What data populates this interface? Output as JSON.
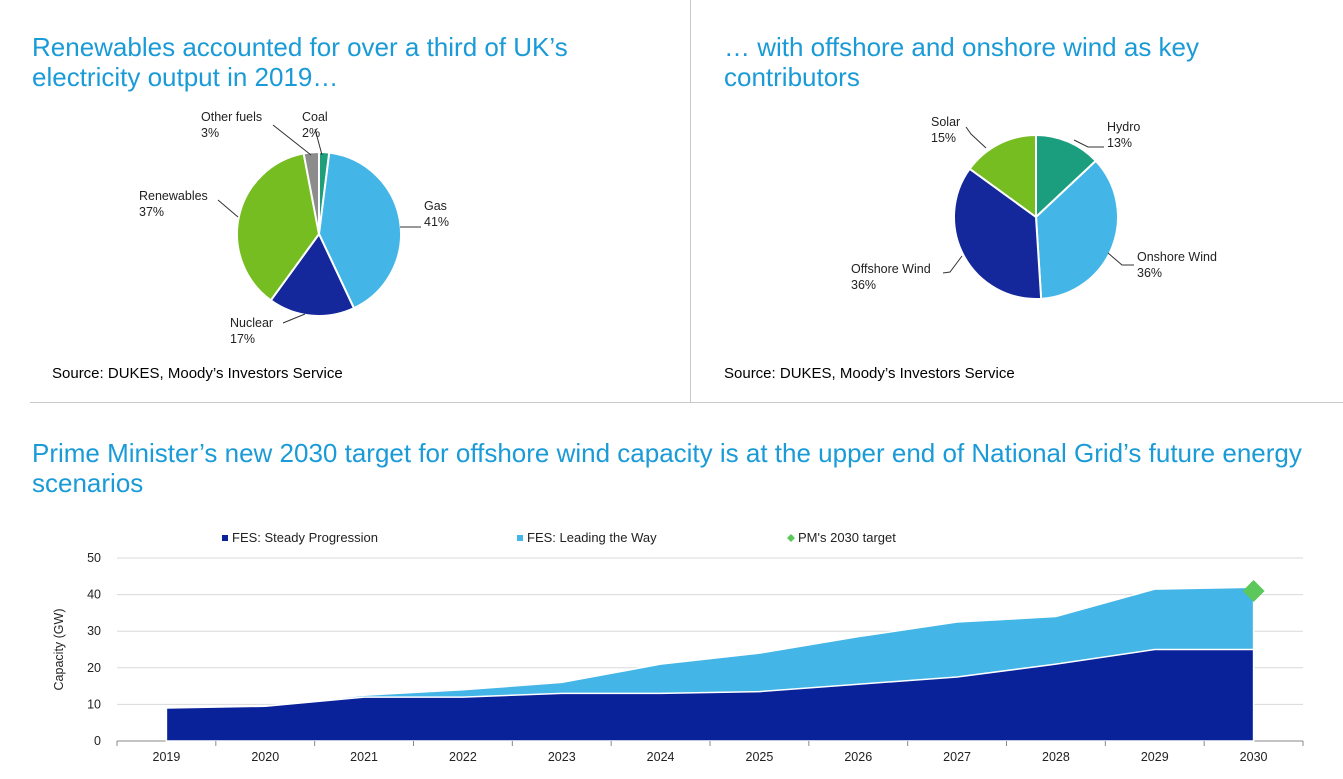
{
  "panels": {
    "top_left": {
      "title": "Renewables accounted for over a third of UK’s electricity output in 2019…",
      "source": "Source: DUKES, Moody’s Investors Service"
    },
    "top_right": {
      "title": "… with offshore and onshore wind as key contributors",
      "source": "Source: DUKES, Moody’s Investors Service"
    },
    "bottom": {
      "title": "Prime Minister’s new 2030 target for offshore wind capacity is at the upper end of National Grid’s future energy scenarios"
    }
  },
  "chart_data": [
    {
      "type": "pie",
      "slices": [
        {
          "label": "Coal",
          "value": 2,
          "value_label": "2%",
          "color": "#1f9e7a"
        },
        {
          "label": "Gas",
          "value": 41,
          "value_label": "41%",
          "color": "#43b5e6"
        },
        {
          "label": "Nuclear",
          "value": 17,
          "value_label": "17%",
          "color": "#14279b"
        },
        {
          "label": "Renewables",
          "value": 37,
          "value_label": "37%",
          "color": "#76bd22"
        },
        {
          "label": "Other fuels",
          "value": 3,
          "value_label": "3%",
          "color": "#8c8c8c"
        }
      ]
    },
    {
      "type": "pie",
      "slices": [
        {
          "label": "Hydro",
          "value": 13,
          "value_label": "13%",
          "color": "#1a9e7d"
        },
        {
          "label": "Onshore Wind",
          "value": 36,
          "value_label": "36%",
          "color": "#43b5e6"
        },
        {
          "label": "Offshore Wind",
          "value": 36,
          "value_label": "36%",
          "color": "#14279b"
        },
        {
          "label": "Solar",
          "value": 15,
          "value_label": "15%",
          "color": "#76bd22"
        }
      ]
    },
    {
      "type": "area",
      "categories": [
        "2019",
        "2020",
        "2021",
        "2022",
        "2023",
        "2024",
        "2025",
        "2026",
        "2027",
        "2028",
        "2029",
        "2030"
      ],
      "series": [
        {
          "name": "FES: Steady Progression",
          "color": "#0a2299",
          "values": [
            9,
            9.5,
            12,
            12,
            13,
            13,
            13.5,
            15.5,
            17.5,
            21,
            25,
            25
          ]
        },
        {
          "name": "FES: Leading the Way",
          "color": "#43b5e6",
          "values": [
            9,
            9.5,
            12.5,
            14,
            16,
            21,
            24,
            28.5,
            32.5,
            34,
            41.5,
            42
          ]
        },
        {
          "name": "PM's 2030 target",
          "color": "#5cc75a",
          "marker": "diamond",
          "points": [
            {
              "x": "2030",
              "y": 41
            }
          ]
        }
      ],
      "ylabel": "Capacity (GW)",
      "ylim": [
        0,
        50
      ],
      "yticks": [
        0,
        10,
        20,
        30,
        40,
        50
      ],
      "grid": true,
      "legend_position": "top"
    }
  ]
}
